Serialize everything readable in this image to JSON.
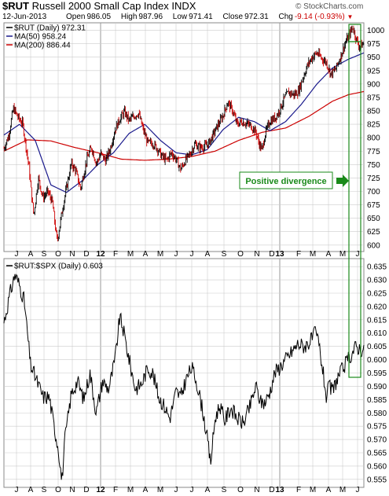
{
  "header": {
    "symbol": "$RUT",
    "name": "Russell 2000 Small Cap Index",
    "exchange": "INDX",
    "date": "12-Jun-2013",
    "open_label": "Open",
    "open": "986.05",
    "high_label": "High",
    "high": "987.96",
    "low_label": "Low",
    "low": "971.41",
    "close_label": "Close",
    "close": "972.31",
    "chg_label": "Chg",
    "chg": "-9.14 (-0.93%)",
    "copyright": "© StockCharts.com"
  },
  "colors": {
    "price": "#000000",
    "up_bar": "#000000",
    "down_bar": "#cc0000",
    "ma50": "#1a1a8c",
    "ma200": "#cc0000",
    "annotation": "#1a8a1a",
    "grid": "#cccccc",
    "separator": "#999999"
  },
  "chart_data": [
    {
      "type": "line",
      "panel": "upper",
      "title": "$RUT (Daily) 972.31",
      "x_tick_labels": [
        "J",
        "A",
        "S",
        "O",
        "N",
        "D",
        "12",
        "F",
        "M",
        "A",
        "M",
        "J",
        "J",
        "A",
        "S",
        "O",
        "N",
        "D",
        "13",
        "F",
        "M",
        "A",
        "M",
        "J"
      ],
      "y_ticks": [
        600,
        625,
        650,
        675,
        700,
        725,
        750,
        775,
        800,
        825,
        850,
        875,
        900,
        925,
        950,
        975,
        1000
      ],
      "ylim": [
        588,
        1014
      ],
      "n_points": 490,
      "legend": [
        "$RUT (Daily) 972.31",
        "MA(50) 958.24",
        "MA(200) 886.44"
      ],
      "legend_position": "top-left",
      "price_anchors": [
        [
          0,
          780
        ],
        [
          6,
          803
        ],
        [
          12,
          855
        ],
        [
          18,
          838
        ],
        [
          24,
          826
        ],
        [
          32,
          745
        ],
        [
          38,
          655
        ],
        [
          44,
          725
        ],
        [
          50,
          688
        ],
        [
          56,
          700
        ],
        [
          62,
          680
        ],
        [
          68,
          606
        ],
        [
          74,
          660
        ],
        [
          80,
          707
        ],
        [
          86,
          752
        ],
        [
          92,
          738
        ],
        [
          98,
          705
        ],
        [
          106,
          760
        ],
        [
          112,
          782
        ],
        [
          118,
          752
        ],
        [
          124,
          770
        ],
        [
          130,
          757
        ],
        [
          136,
          780
        ],
        [
          142,
          815
        ],
        [
          148,
          835
        ],
        [
          154,
          848
        ],
        [
          160,
          832
        ],
        [
          166,
          840
        ],
        [
          172,
          846
        ],
        [
          178,
          815
        ],
        [
          184,
          790
        ],
        [
          190,
          790
        ],
        [
          196,
          780
        ],
        [
          202,
          765
        ],
        [
          208,
          758
        ],
        [
          214,
          772
        ],
        [
          220,
          760
        ],
        [
          226,
          741
        ],
        [
          232,
          758
        ],
        [
          238,
          770
        ],
        [
          244,
          788
        ],
        [
          250,
          782
        ],
        [
          256,
          783
        ],
        [
          262,
          790
        ],
        [
          268,
          807
        ],
        [
          274,
          825
        ],
        [
          280,
          841
        ],
        [
          286,
          866
        ],
        [
          292,
          851
        ],
        [
          298,
          825
        ],
        [
          304,
          830
        ],
        [
          310,
          826
        ],
        [
          316,
          822
        ],
        [
          322,
          810
        ],
        [
          326,
          790
        ],
        [
          330,
          777
        ],
        [
          334,
          808
        ],
        [
          340,
          831
        ],
        [
          346,
          836
        ],
        [
          352,
          850
        ],
        [
          358,
          872
        ],
        [
          364,
          885
        ],
        [
          370,
          880
        ],
        [
          376,
          885
        ],
        [
          382,
          911
        ],
        [
          388,
          935
        ],
        [
          394,
          950
        ],
        [
          400,
          958
        ],
        [
          406,
          948
        ],
        [
          412,
          940
        ],
        [
          418,
          918
        ],
        [
          424,
          928
        ],
        [
          430,
          950
        ],
        [
          436,
          975
        ],
        [
          442,
          994
        ],
        [
          446,
          1006
        ],
        [
          450,
          985
        ],
        [
          454,
          970
        ],
        [
          460,
          975
        ]
      ],
      "ma50_anchors": [
        [
          0,
          805
        ],
        [
          20,
          825
        ],
        [
          40,
          795
        ],
        [
          60,
          712
        ],
        [
          80,
          698
        ],
        [
          100,
          720
        ],
        [
          120,
          750
        ],
        [
          140,
          772
        ],
        [
          160,
          808
        ],
        [
          180,
          825
        ],
        [
          200,
          795
        ],
        [
          220,
          772
        ],
        [
          240,
          768
        ],
        [
          260,
          778
        ],
        [
          280,
          815
        ],
        [
          300,
          838
        ],
        [
          320,
          830
        ],
        [
          340,
          813
        ],
        [
          360,
          830
        ],
        [
          380,
          862
        ],
        [
          400,
          900
        ],
        [
          420,
          930
        ],
        [
          440,
          946
        ],
        [
          460,
          958
        ]
      ],
      "ma200_anchors": [
        [
          0,
          775
        ],
        [
          30,
          796
        ],
        [
          60,
          794
        ],
        [
          90,
          782
        ],
        [
          120,
          772
        ],
        [
          150,
          760
        ],
        [
          180,
          758
        ],
        [
          210,
          760
        ],
        [
          240,
          765
        ],
        [
          270,
          775
        ],
        [
          300,
          795
        ],
        [
          330,
          810
        ],
        [
          360,
          818
        ],
        [
          390,
          840
        ],
        [
          420,
          868
        ],
        [
          440,
          880
        ],
        [
          460,
          886
        ]
      ],
      "annotation": {
        "text": "Positive divergence",
        "arrow": "right"
      }
    },
    {
      "type": "line",
      "panel": "lower",
      "title": "$RUT:$SPX (Daily) 0.603",
      "x_tick_labels": [
        "J",
        "A",
        "S",
        "O",
        "N",
        "D",
        "12",
        "F",
        "M",
        "A",
        "M",
        "J",
        "J",
        "A",
        "S",
        "O",
        "N",
        "D",
        "13",
        "F",
        "M",
        "A",
        "M",
        "J"
      ],
      "y_ticks": [
        0.555,
        0.56,
        0.565,
        0.57,
        0.575,
        0.58,
        0.585,
        0.59,
        0.595,
        0.6,
        0.605,
        0.61,
        0.615,
        0.62,
        0.625,
        0.63,
        0.635
      ],
      "ylim": [
        0.552,
        0.638
      ],
      "n_points": 490,
      "series_name": "$RUT:$SPX (Daily) 0.603",
      "ratio_anchors": [
        [
          0,
          0.614
        ],
        [
          8,
          0.625
        ],
        [
          14,
          0.632
        ],
        [
          20,
          0.628
        ],
        [
          26,
          0.622
        ],
        [
          34,
          0.598
        ],
        [
          42,
          0.592
        ],
        [
          50,
          0.586
        ],
        [
          58,
          0.586
        ],
        [
          64,
          0.575
        ],
        [
          70,
          0.566
        ],
        [
          74,
          0.554
        ],
        [
          78,
          0.57
        ],
        [
          86,
          0.587
        ],
        [
          94,
          0.592
        ],
        [
          102,
          0.585
        ],
        [
          110,
          0.595
        ],
        [
          118,
          0.58
        ],
        [
          126,
          0.592
        ],
        [
          134,
          0.589
        ],
        [
          142,
          0.6
        ],
        [
          148,
          0.616
        ],
        [
          152,
          0.612
        ],
        [
          160,
          0.6
        ],
        [
          168,
          0.589
        ],
        [
          176,
          0.591
        ],
        [
          184,
          0.597
        ],
        [
          190,
          0.595
        ],
        [
          198,
          0.586
        ],
        [
          206,
          0.582
        ],
        [
          212,
          0.578
        ],
        [
          220,
          0.588
        ],
        [
          226,
          0.586
        ],
        [
          232,
          0.592
        ],
        [
          240,
          0.597
        ],
        [
          246,
          0.592
        ],
        [
          254,
          0.581
        ],
        [
          260,
          0.57
        ],
        [
          264,
          0.561
        ],
        [
          270,
          0.578
        ],
        [
          276,
          0.583
        ],
        [
          282,
          0.577
        ],
        [
          290,
          0.582
        ],
        [
          298,
          0.578
        ],
        [
          306,
          0.576
        ],
        [
          314,
          0.582
        ],
        [
          322,
          0.59
        ],
        [
          328,
          0.584
        ],
        [
          334,
          0.584
        ],
        [
          340,
          0.588
        ],
        [
          346,
          0.595
        ],
        [
          352,
          0.597
        ],
        [
          360,
          0.6
        ],
        [
          368,
          0.603
        ],
        [
          376,
          0.606
        ],
        [
          384,
          0.605
        ],
        [
          392,
          0.607
        ],
        [
          398,
          0.61
        ],
        [
          402,
          0.607
        ],
        [
          408,
          0.595
        ],
        [
          412,
          0.586
        ],
        [
          416,
          0.59
        ],
        [
          420,
          0.588
        ],
        [
          426,
          0.593
        ],
        [
          432,
          0.596
        ],
        [
          438,
          0.599
        ],
        [
          444,
          0.602
        ],
        [
          450,
          0.605
        ],
        [
          456,
          0.604
        ],
        [
          460,
          0.603
        ]
      ]
    }
  ]
}
